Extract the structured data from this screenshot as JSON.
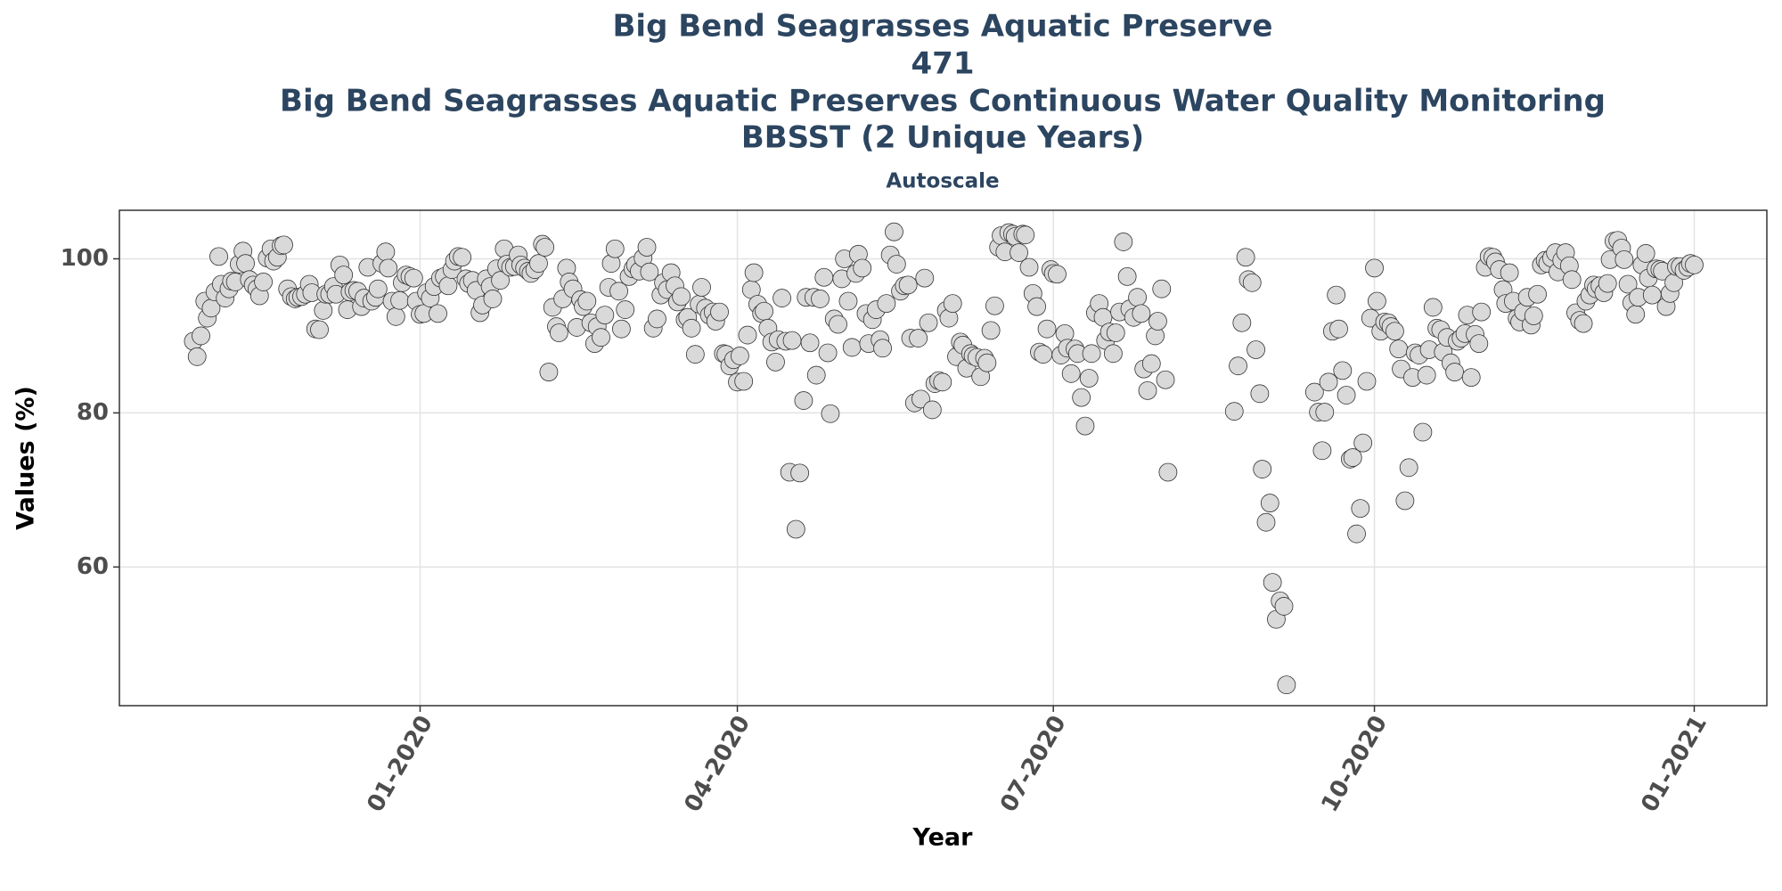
{
  "chart_data": {
    "type": "scatter",
    "title": [
      "Big Bend Seagrasses Aquatic Preserve",
      "471",
      "Big Bend Seagrasses Aquatic Preserves Continuous Water Quality Monitoring",
      "BBSST (2 Unique Years)"
    ],
    "subtitle": "Autoscale",
    "xlabel": "Year",
    "ylabel": "Values (%)",
    "color": "#d9d9d9",
    "edgecolor": "#333333",
    "grid": true,
    "xlim": [
      2019.764,
      2021.057
    ],
    "ylim": [
      42,
      106.3
    ],
    "xticks": [
      {
        "value": 2020,
        "label": "01-2020"
      },
      {
        "value": 2020.249,
        "label": "04-2020"
      },
      {
        "value": 2020.497,
        "label": "07-2020"
      },
      {
        "value": 2020.749,
        "label": "10-2020"
      },
      {
        "value": 2021,
        "label": "01-2021"
      }
    ],
    "yticks": [
      60,
      80,
      100
    ],
    "x": [
      2019.822,
      2019.825,
      2019.828,
      2019.831,
      2019.833,
      2019.836,
      2019.839,
      2019.842,
      2019.844,
      2019.847,
      2019.85,
      2019.852,
      2019.855,
      2019.858,
      2019.861,
      2019.863,
      2019.866,
      2019.869,
      2019.872,
      2019.874,
      2019.877,
      2019.88,
      2019.883,
      2019.885,
      2019.888,
      2019.891,
      2019.893,
      2019.896,
      2019.899,
      2019.902,
      2019.904,
      2019.907,
      2019.91,
      2019.913,
      2019.915,
      2019.918,
      2019.921,
      2019.924,
      2019.926,
      2019.929,
      2019.932,
      2019.934,
      2019.937,
      2019.94,
      2019.943,
      2019.945,
      2019.948,
      2019.951,
      2019.954,
      2019.956,
      2019.959,
      2019.962,
      2019.965,
      2019.967,
      2019.97,
      2019.973,
      2019.975,
      2019.978,
      2019.981,
      2019.984,
      2019.986,
      2019.989,
      2019.992,
      2019.995,
      2019.997,
      2020,
      2020.003,
      2020.005,
      2020.008,
      2020.011,
      2020.014,
      2020.016,
      2020.019,
      2020.022,
      2020.025,
      2020.027,
      2020.03,
      2020.033,
      2020.036,
      2020.038,
      2020.041,
      2020.044,
      2020.047,
      2020.049,
      2020.052,
      2020.055,
      2020.057,
      2020.06,
      2020.063,
      2020.066,
      2020.068,
      2020.071,
      2020.074,
      2020.077,
      2020.079,
      2020.082,
      2020.085,
      2020.087,
      2020.09,
      2020.093,
      2020.096,
      2020.098,
      2020.101,
      2020.104,
      2020.107,
      2020.109,
      2020.112,
      2020.115,
      2020.117,
      2020.12,
      2020.123,
      2020.126,
      2020.128,
      2020.131,
      2020.134,
      2020.137,
      2020.139,
      2020.142,
      2020.145,
      2020.148,
      2020.15,
      2020.153,
      2020.156,
      2020.158,
      2020.161,
      2020.164,
      2020.167,
      2020.169,
      2020.172,
      2020.175,
      2020.178,
      2020.18,
      2020.183,
      2020.186,
      2020.189,
      2020.191,
      2020.194,
      2020.197,
      2020.2,
      2020.202,
      2020.205,
      2020.208,
      2020.21,
      2020.213,
      2020.216,
      2020.219,
      2020.221,
      2020.224,
      2020.227,
      2020.23,
      2020.232,
      2020.235,
      2020.238,
      2020.24,
      2020.243,
      2020.246,
      2020.249,
      2020.251,
      2020.254,
      2020.257,
      2020.26,
      2020.262,
      2020.265,
      2020.268,
      2020.27,
      2020.273,
      2020.276,
      2020.279,
      2020.281,
      2020.284,
      2020.287,
      2020.29,
      2020.292,
      2020.295,
      2020.298,
      2020.301,
      2020.303,
      2020.306,
      2020.309,
      2020.311,
      2020.314,
      2020.317,
      2020.32,
      2020.322,
      2020.325,
      2020.328,
      2020.331,
      2020.333,
      2020.336,
      2020.339,
      2020.342,
      2020.344,
      2020.347,
      2020.35,
      2020.352,
      2020.355,
      2020.358,
      2020.361,
      2020.363,
      2020.366,
      2020.369,
      2020.372,
      2020.374,
      2020.377,
      2020.38,
      2020.383,
      2020.385,
      2020.388,
      2020.391,
      2020.393,
      2020.396,
      2020.399,
      2020.402,
      2020.404,
      2020.407,
      2020.41,
      2020.413,
      2020.415,
      2020.418,
      2020.421,
      2020.424,
      2020.426,
      2020.429,
      2020.432,
      2020.434,
      2020.437,
      2020.44,
      2020.443,
      2020.445,
      2020.448,
      2020.451,
      2020.454,
      2020.456,
      2020.459,
      2020.462,
      2020.465,
      2020.467,
      2020.47,
      2020.473,
      2020.475,
      2020.478,
      2020.481,
      2020.484,
      2020.486,
      2020.489,
      2020.492,
      2020.495,
      2020.497,
      2020.5,
      2020.503,
      2020.506,
      2020.508,
      2020.511,
      2020.514,
      2020.516,
      2020.519,
      2020.522,
      2020.525,
      2020.527,
      2020.53,
      2020.533,
      2020.536,
      2020.538,
      2020.541,
      2020.544,
      2020.546,
      2020.549,
      2020.552,
      2020.555,
      2020.557,
      2020.56,
      2020.563,
      2020.566,
      2020.568,
      2020.571,
      2020.574,
      2020.577,
      2020.579,
      2020.582,
      2020.585,
      2020.587,
      2020.639,
      2020.642,
      2020.645,
      2020.648,
      2020.65,
      2020.653,
      2020.656,
      2020.659,
      2020.661,
      2020.664,
      2020.667,
      2020.669,
      2020.672,
      2020.675,
      2020.678,
      2020.68,
      2020.702,
      2020.705,
      2020.708,
      2020.71,
      2020.713,
      2020.716,
      2020.719,
      2020.721,
      2020.724,
      2020.727,
      2020.73,
      2020.732,
      2020.735,
      2020.738,
      2020.74,
      2020.743,
      2020.746,
      2020.749,
      2020.751,
      2020.754,
      2020.757,
      2020.76,
      2020.762,
      2020.765,
      2020.768,
      2020.77,
      2020.773,
      2020.776,
      2020.779,
      2020.781,
      2020.784,
      2020.787,
      2020.79,
      2020.792,
      2020.795,
      2020.798,
      2020.801,
      2020.803,
      2020.806,
      2020.809,
      2020.812,
      2020.814,
      2020.817,
      2020.82,
      2020.822,
      2020.825,
      2020.828,
      2020.831,
      2020.833,
      2020.836,
      2020.839,
      2020.842,
      2020.844,
      2020.847,
      2020.85,
      2020.852,
      2020.855,
      2020.858,
      2020.861,
      2020.863,
      2020.866,
      2020.869,
      2020.872,
      2020.874,
      2020.877,
      2020.88,
      2020.883,
      2020.885,
      2020.888,
      2020.891,
      2020.893,
      2020.896,
      2020.899,
      2020.902,
      2020.904,
      2020.907,
      2020.91,
      2020.913,
      2020.915,
      2020.918,
      2020.921,
      2020.923,
      2020.926,
      2020.929,
      2020.932,
      2020.934,
      2020.937,
      2020.94,
      2020.943,
      2020.945,
      2020.948,
      2020.951,
      2020.954,
      2020.956,
      2020.959,
      2020.962,
      2020.964,
      2020.967,
      2020.97,
      2020.973,
      2020.975,
      2020.978,
      2020.981,
      2020.984,
      2020.986,
      2020.989,
      2020.992,
      2020.995,
      2020.997,
      2021
    ],
    "values": [
      89.3,
      87.3,
      90,
      94.5,
      92.3,
      93.6,
      95.7,
      100.3,
      96.7,
      94.9,
      96.1,
      97.1,
      97,
      99.3,
      101,
      99.4,
      97.3,
      96.6,
      96.1,
      95.2,
      97,
      100.1,
      101.3,
      99.7,
      100.2,
      101.7,
      101.8,
      96.1,
      95.1,
      94.8,
      95,
      95.1,
      95.4,
      96.7,
      95.6,
      90.9,
      90.8,
      93.3,
      95.4,
      95.4,
      96.4,
      95.4,
      99.2,
      97.9,
      93.4,
      95.7,
      95.9,
      95.8,
      93.8,
      94.9,
      98.9,
      94.5,
      95,
      96.1,
      99.4,
      100.9,
      98.8,
      94.5,
      92.5,
      94.6,
      96.9,
      97.9,
      97.7,
      97.5,
      94.5,
      92.8,
      92.9,
      95.6,
      94.9,
      96.4,
      92.9,
      97.5,
      97.7,
      96.5,
      98.6,
      99.7,
      100.3,
      100.2,
      97.4,
      96.8,
      97.2,
      95.9,
      93,
      94,
      97.4,
      96.4,
      94.8,
      98.7,
      97.2,
      101.3,
      99.3,
      98.9,
      99,
      100.5,
      99.2,
      98.8,
      98.4,
      98.1,
      98.6,
      99.4,
      101.9,
      101.5,
      85.3,
      93.7,
      91.2,
      90.4,
      94.8,
      98.8,
      97,
      96.1,
      91.1,
      94.7,
      93.8,
      94.5,
      91.7,
      89,
      91.2,
      89.8,
      92.7,
      96.3,
      99.4,
      101.3,
      95.8,
      90.9,
      93.4,
      97.7,
      98.7,
      99.2,
      98.4,
      100.1,
      101.5,
      98.3,
      91,
      92.2,
      95.3,
      96.9,
      96,
      98.2,
      96.5,
      94.4,
      95.1,
      92.1,
      92.4,
      91,
      87.6,
      94.1,
      96.3,
      93.6,
      92.7,
      93.1,
      91.9,
      93.1,
      87.7,
      87.6,
      86.1,
      86.9,
      84,
      87.4,
      84.1,
      90.1,
      96,
      98.2,
      94.1,
      92.9,
      93.2,
      91,
      89.2,
      86.6,
      89.5,
      94.9,
      89.3,
      72.3,
      89.4,
      64.9,
      72.2,
      81.6,
      95,
      89.1,
      95,
      84.9,
      94.8,
      97.6,
      87.8,
      79.9,
      92.2,
      91.5,
      97.4,
      100,
      94.5,
      88.5,
      98.1,
      100.6,
      98.8,
      92.9,
      89,
      92.1,
      93.4,
      89.5,
      88.4,
      94.2,
      100.5,
      103.5,
      99.3,
      95.8,
      96.5,
      96.6,
      89.7,
      81.3,
      89.7,
      81.8,
      97.5,
      91.7,
      80.4,
      83.8,
      84.2,
      84,
      93.3,
      92.3,
      94.2,
      87.3,
      89.2,
      88.8,
      85.8,
      87.7,
      87.4,
      87.2,
      84.7,
      87.1,
      86.5,
      90.7,
      93.9,
      101.5,
      103,
      100.9,
      103.4,
      103.2,
      102.9,
      100.8,
      103.2,
      103.1,
      98.9,
      95.5,
      93.8,
      87.9,
      87.6,
      90.9,
      98.6,
      98.1,
      98,
      87.5,
      90.3,
      88.4,
      85.1,
      88.3,
      87.7,
      82,
      78.3,
      84.5,
      87.7,
      93,
      94.2,
      92.4,
      89.4,
      90.5,
      87.7,
      90.4,
      93.1,
      102.2,
      97.7,
      93.5,
      92.4,
      95,
      92.9,
      85.7,
      82.9,
      86.4,
      90,
      91.9,
      96.1,
      84.3,
      72.3,
      80.2,
      86.1,
      91.7,
      100.2,
      97.3,
      96.9,
      88.2,
      82.5,
      72.7,
      65.8,
      68.3,
      58,
      53.2,
      55.6,
      54.9,
      44.7,
      82.7,
      80.1,
      75.1,
      80.1,
      84,
      90.6,
      95.3,
      90.9,
      85.5,
      82.3,
      74,
      74.2,
      64.3,
      67.6,
      76.1,
      84.1,
      92.3,
      98.8,
      94.5,
      90.6,
      91.8,
      91.7,
      91.2,
      90.6,
      88.3,
      85.7,
      68.6,
      72.9,
      84.6,
      87.8,
      87.5,
      77.5,
      84.9,
      88.2,
      93.7,
      91,
      90.8,
      87.9,
      89.8,
      86.5,
      85.3,
      89.3,
      89.7,
      90.3,
      92.7,
      84.6,
      90.2,
      89,
      93.1,
      98.9,
      100.3,
      100.2,
      99.6,
      98.6,
      96,
      94.2,
      98.2,
      94.5,
      92.3,
      91.8,
      93.1,
      95,
      91.4,
      92.6,
      95.4,
      99.2,
      99.8,
      99.4,
      100.1,
      100.8,
      98.3,
      99.8,
      100.8,
      99.1,
      97.3,
      93,
      92,
      91.6,
      94.5,
      95.3,
      96.6,
      96.1,
      96.5,
      95.6,
      96.8,
      99.9,
      102.3,
      102.4,
      101.4,
      99.9,
      96.7,
      94.3,
      92.8,
      95,
      99.2,
      100.7,
      97.5,
      95.3,
      98.7,
      98.6,
      98.4,
      93.8,
      95.5,
      96.9,
      99,
      99,
      98.5,
      98.9,
      99.4,
      99.2
    ]
  }
}
